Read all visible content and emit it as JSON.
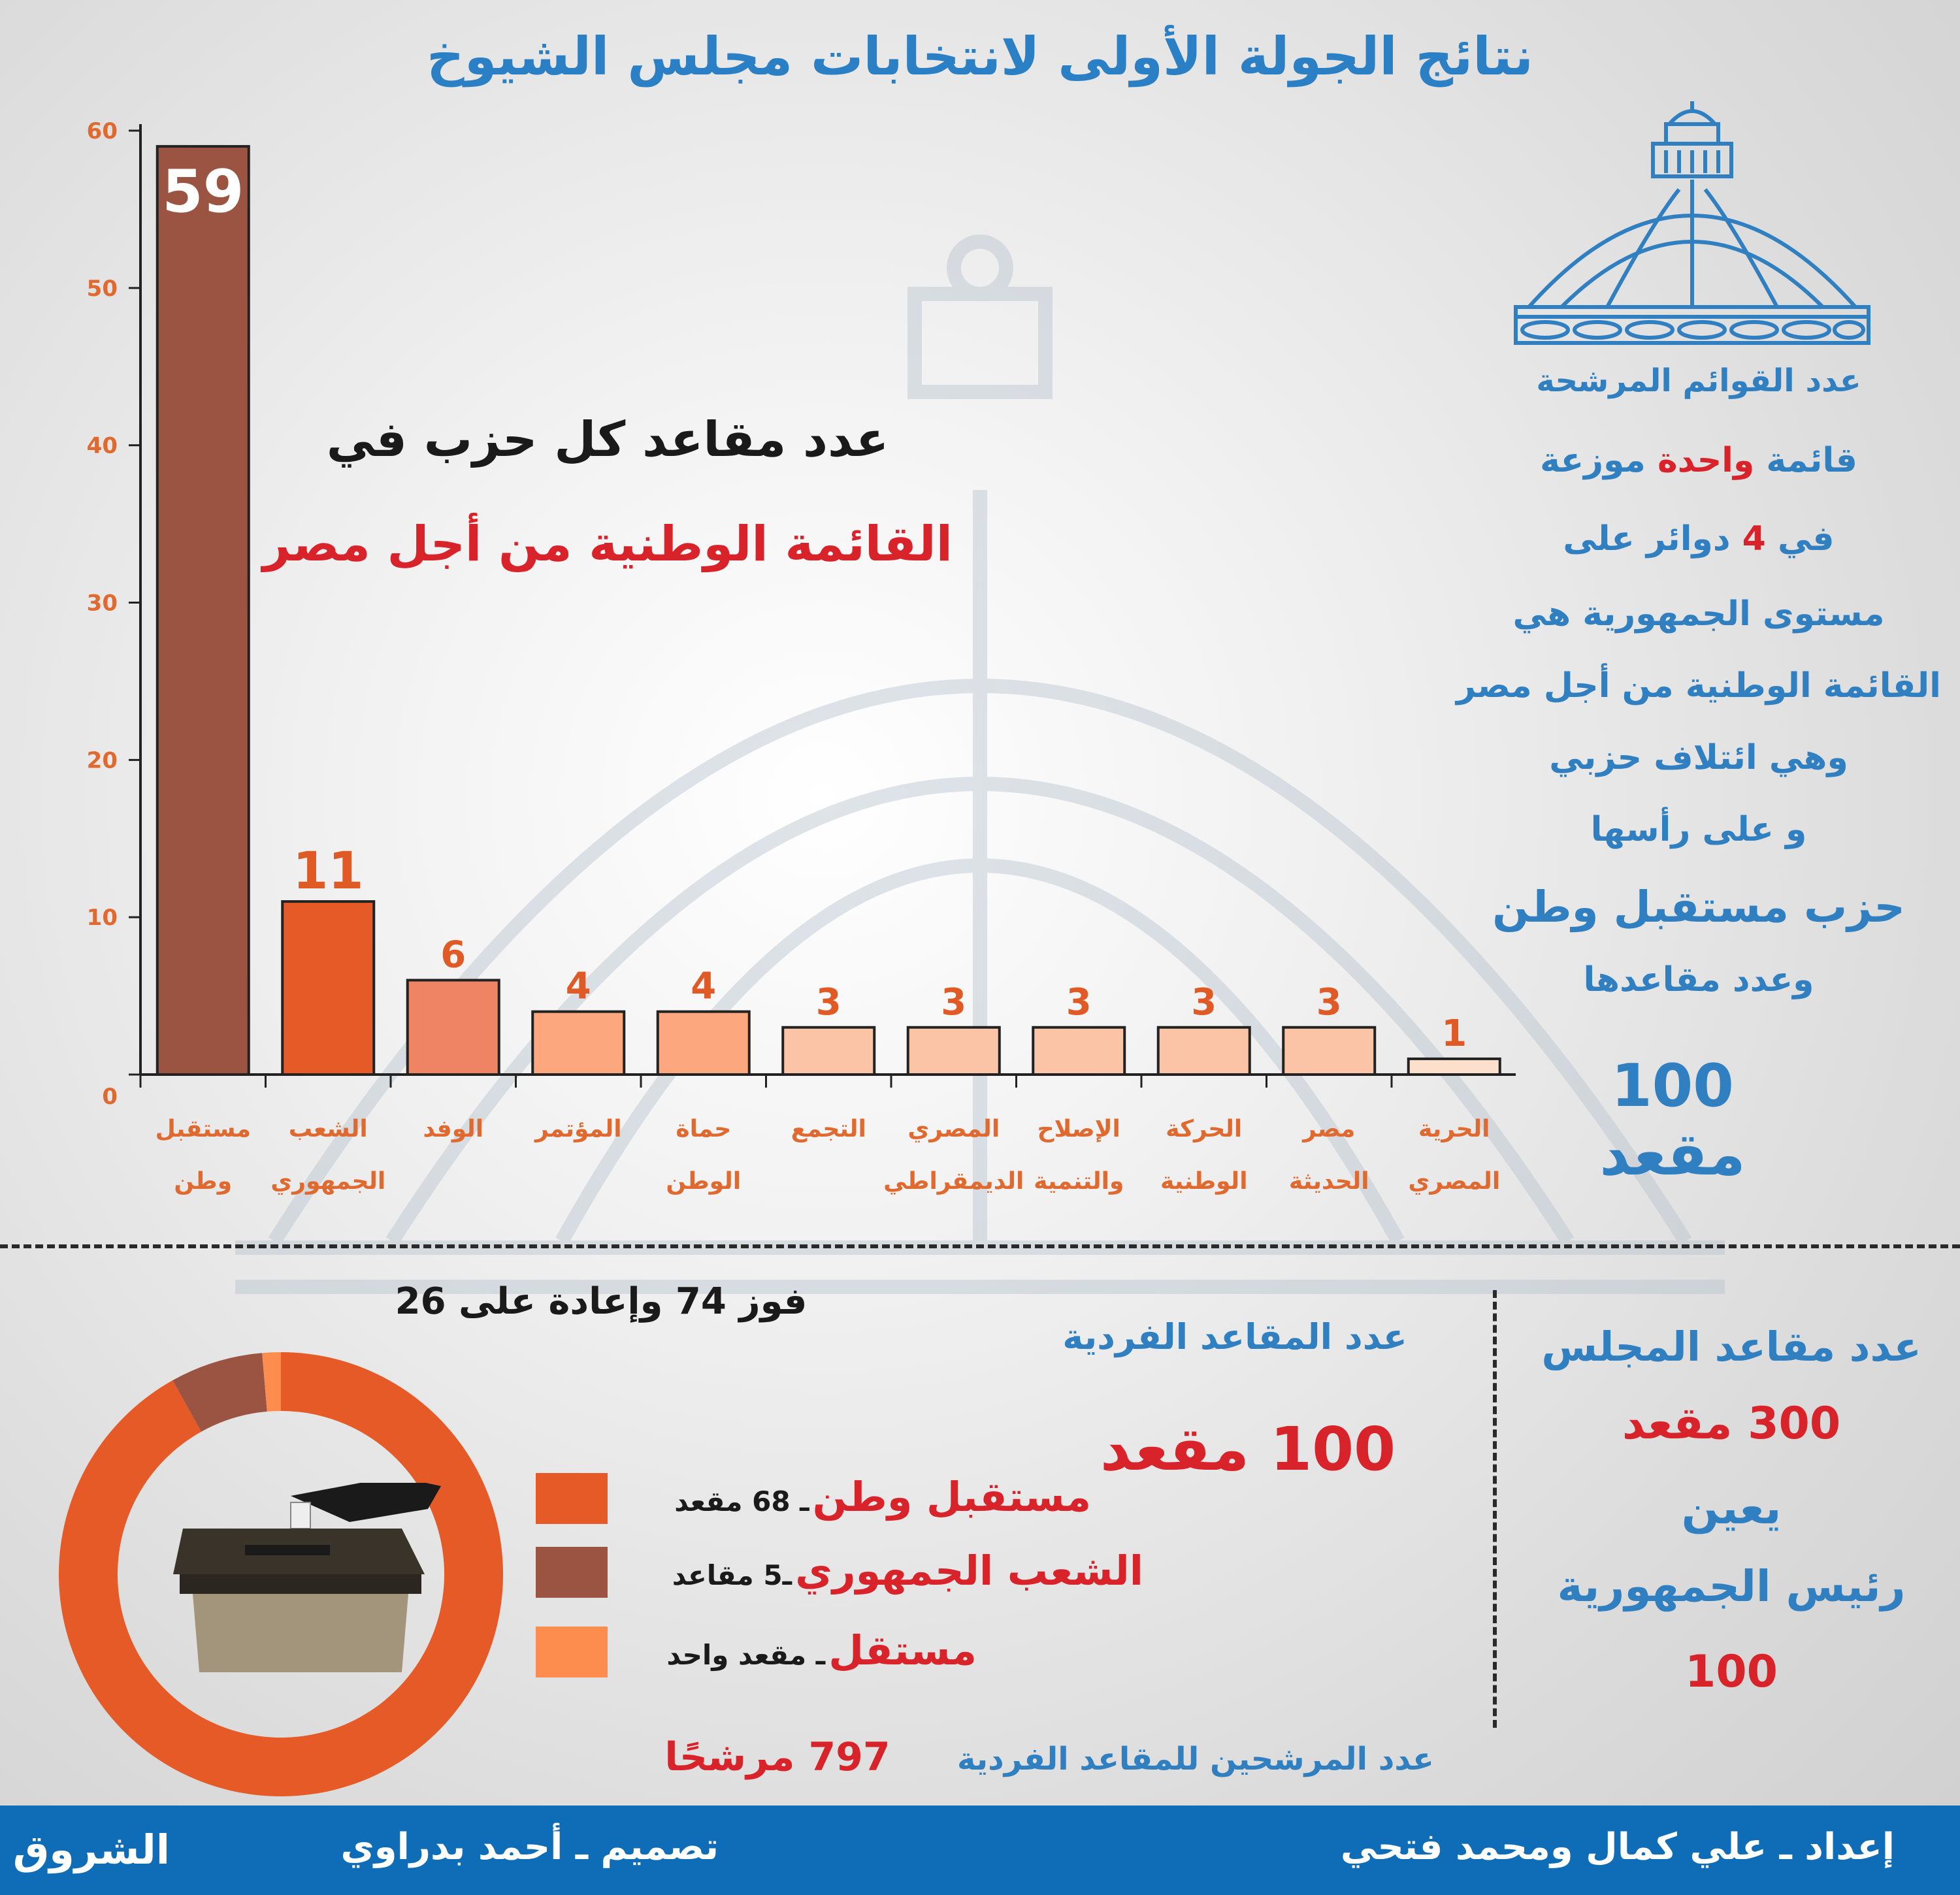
{
  "title": "نتائج الجولة الأولى لانتخابات مجلس الشيوخ",
  "chart_heading": {
    "line1": "عدد مقاعد كل حزب في",
    "line2": "القائمة الوطنية من أجل مصر"
  },
  "chart_data": [
    {
      "type": "bar",
      "categories": [
        [
          "مستقبل",
          "وطن"
        ],
        [
          "الشعب",
          "الجمهوري"
        ],
        [
          "الوفد",
          ""
        ],
        [
          "المؤتمر",
          ""
        ],
        [
          "حماة",
          "الوطن"
        ],
        [
          "التجمع",
          ""
        ],
        [
          "المصري",
          "الديمقراطي"
        ],
        [
          "الإصلاح",
          "والتنمية"
        ],
        [
          "الحركة",
          "الوطنية"
        ],
        [
          "مصر",
          "الحديثة"
        ],
        [
          "الحرية",
          "المصري"
        ]
      ],
      "values": [
        59,
        11,
        6,
        4,
        4,
        3,
        3,
        3,
        3,
        3,
        1
      ],
      "value_labels": [
        "59",
        "11",
        "6",
        "4",
        "4",
        "3",
        "3",
        "3",
        "3",
        "3",
        "1"
      ],
      "bar_colors": [
        "#9a5441",
        "#e55a26",
        "#ef8465",
        "#fda77e",
        "#fda77e",
        "#fcc4a6",
        "#fcc4a6",
        "#fcc4a6",
        "#fcc4a6",
        "#fcc4a6",
        "#fde0cb"
      ],
      "yticks": [
        "0",
        "10",
        "20",
        "30",
        "40",
        "50",
        "60"
      ],
      "ylim": [
        0,
        60
      ],
      "grid": false
    },
    {
      "type": "pie",
      "variant": "donut",
      "values": [
        68,
        5,
        1
      ],
      "colors": [
        "#e55a26",
        "#9a5441",
        "#fd8d4f"
      ]
    }
  ],
  "side_panel": {
    "l1": "عدد القوائم المرشحة",
    "l2a": "قائمة ",
    "l2b": "واحدة",
    "l2c": " موزعة",
    "l3a": "في ",
    "l3b": "4",
    "l3c": " دوائر على",
    "l4": "مستوى الجمهورية هي",
    "l5": "القائمة الوطنية من أجل مصر",
    "l6": "وهي ائتلاف حزبي",
    "l7": "و على رأسها",
    "l8": "حزب مستقبل وطن",
    "l9": "وعدد مقاعدها",
    "l10": "100 مقعد"
  },
  "individual": {
    "win_note": "فوز 74 وإعادة على 26",
    "heading": "عدد المقاعد الفردية",
    "count": "100 مقعد",
    "legend": [
      {
        "label": "مستقبل وطن",
        "sub": "ـ 68 مقعد"
      },
      {
        "label": "الشعب الجمهوري",
        "sub": "ـ5 مقاعد"
      },
      {
        "label": "مستقل",
        "sub": "ـ مقعد واحد"
      }
    ],
    "candidates_label": "عدد المرشحين للمقاعد الفردية",
    "candidates_value": "797 مرشحًا"
  },
  "council": {
    "l1": "عدد مقاعد المجلس",
    "l2": "300 مقعد",
    "l3": "يعين",
    "l4": "رئيس الجمهورية",
    "l5": "100"
  },
  "footer": {
    "prepared": "إعداد ـ علي كمال ومحمد فتحي",
    "design": "تصميم ـ أحمد بدراوي",
    "logo": "الشروق"
  },
  "colors": {
    "accent_blue": "#2b7fc4",
    "accent_red": "#d8232a",
    "footer_bg": "#0f6db7"
  }
}
